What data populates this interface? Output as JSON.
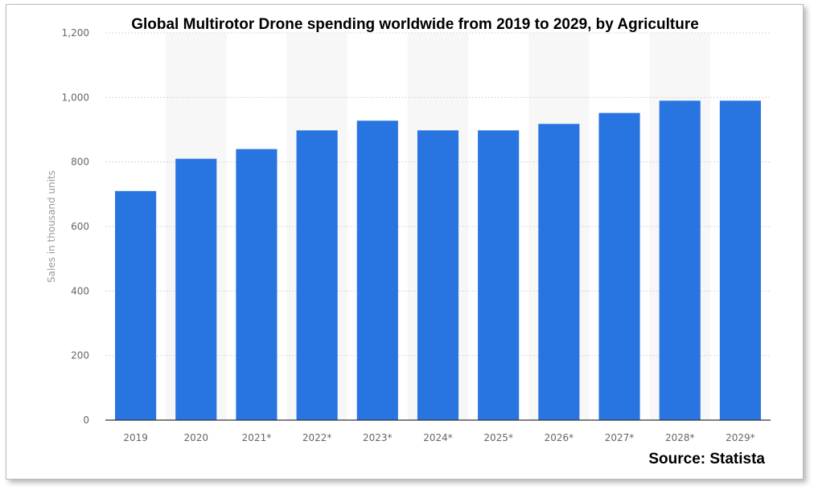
{
  "chart_data": {
    "type": "bar",
    "title": "Global Multirotor Drone spending worldwide from 2019 to 2029, by Agriculture",
    "ylabel": "Sales in thousand units",
    "xlabel": "",
    "categories": [
      "2019",
      "2020",
      "2021*",
      "2022*",
      "2023*",
      "2024*",
      "2025*",
      "2026*",
      "2027*",
      "2028*",
      "2029*"
    ],
    "values": [
      710,
      810,
      840,
      898,
      928,
      898,
      898,
      918,
      952,
      990,
      990
    ],
    "ylim": [
      0,
      1200
    ],
    "yticks": [
      "0",
      "200",
      "400",
      "600",
      "800",
      "1,000",
      "1,200"
    ],
    "ytick_values": [
      0,
      200,
      400,
      600,
      800,
      1000,
      1200
    ],
    "grid": true,
    "alternating_column_bands": true,
    "source": "Source: Statista",
    "bar_color": "#2874e0",
    "band_color": "#f7f7f7"
  }
}
